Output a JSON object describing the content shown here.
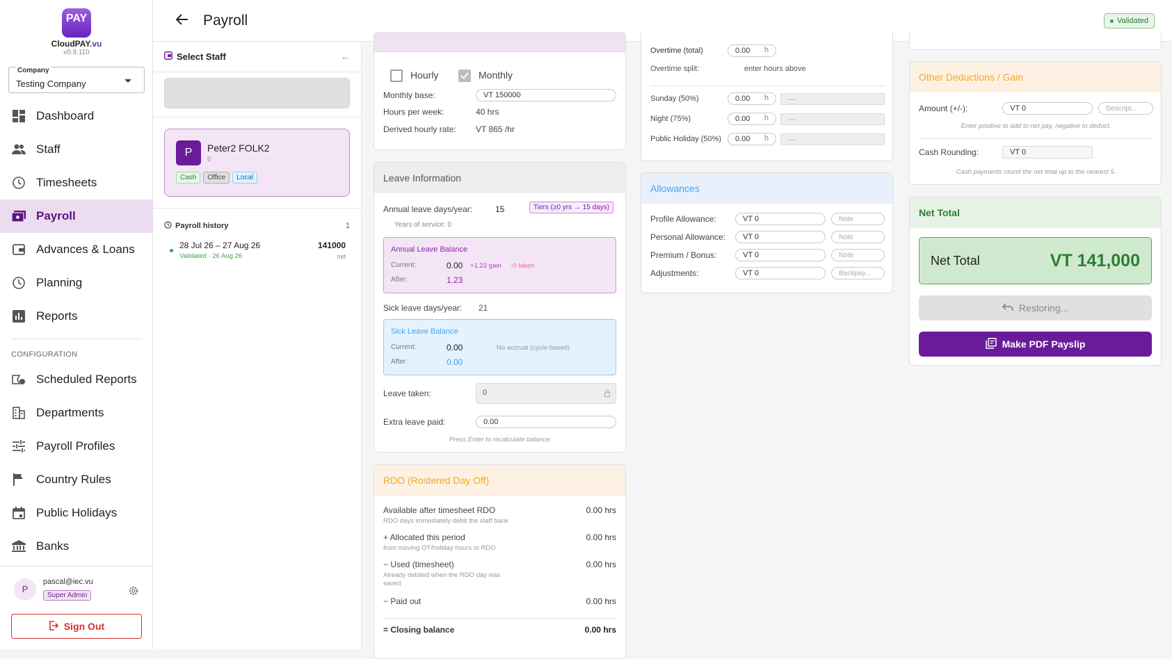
{
  "app": {
    "logo_text": "PAY",
    "name_a": "CloudPAY",
    "name_b": ".vu",
    "version": "v0.9.110"
  },
  "company": {
    "label": "Company",
    "value": "Testing Company"
  },
  "nav": {
    "items": [
      {
        "label": "Dashboard",
        "icon": "dashboard-icon"
      },
      {
        "label": "Staff",
        "icon": "people-icon"
      },
      {
        "label": "Timesheets",
        "icon": "clock-icon"
      },
      {
        "label": "Payroll",
        "icon": "payroll-icon"
      },
      {
        "label": "Advances & Loans",
        "icon": "wallet-icon"
      },
      {
        "label": "Planning",
        "icon": "clock-icon"
      },
      {
        "label": "Reports",
        "icon": "bar-chart-icon"
      }
    ],
    "config_heading": "CONFIGURATION",
    "config_items": [
      {
        "label": "Scheduled Reports",
        "icon": "scheduled-icon"
      },
      {
        "label": "Departments",
        "icon": "building-icon"
      },
      {
        "label": "Payroll Profiles",
        "icon": "tune-icon"
      },
      {
        "label": "Country Rules",
        "icon": "flag-icon"
      },
      {
        "label": "Public Holidays",
        "icon": "calendar-icon"
      },
      {
        "label": "Banks",
        "icon": "bank-icon"
      }
    ]
  },
  "user": {
    "initial": "P",
    "email": "pascal@iec.vu",
    "role": "Super Admin",
    "signout": "Sign Out"
  },
  "header": {
    "title": "Payroll",
    "status": "Validated"
  },
  "staff_panel": {
    "title": "Select Staff",
    "collapse": "←",
    "staff": {
      "initial": "P",
      "name": "Peter2 FOLK2",
      "number": "6",
      "tags": [
        "Cash",
        "Office",
        "Local"
      ]
    },
    "history_title": "Payroll history",
    "history_count": "1",
    "history": [
      {
        "dates": "28 Jul 26 – 27 Aug 26",
        "status": "Validated · 26 Aug 26",
        "amount": "141000",
        "unit": "net"
      }
    ]
  },
  "pay_basis": {
    "hourly": "Hourly",
    "monthly": "Monthly",
    "monthly_base_label": "Monthly base:",
    "monthly_base": "VT 150000",
    "hours_week_label": "Hours per week:",
    "hours_week": "40 hrs",
    "hourly_rate_label": "Derived hourly rate:",
    "hourly_rate": "VT 865 /hr"
  },
  "leave": {
    "title": "Leave Information",
    "annual_label": "Annual leave days/year:",
    "annual_value": "15",
    "tiers": "Tiers (≥0 yrs → 15 days)",
    "service": "Years of service: 0",
    "alb_title": "Annual Leave Balance",
    "alb_current_label": "Current:",
    "alb_current": "0.00",
    "alb_gain": "+1.23 gain",
    "alb_taken": "-0 taken",
    "alb_after_label": "After:",
    "alb_after": "1.23",
    "sick_label": "Sick leave days/year:",
    "sick_value": "21",
    "slb_title": "Sick Leave Balance",
    "slb_current_label": "Current:",
    "slb_current": "0.00",
    "slb_note": "No accrual (cycle-based)",
    "slb_after_label": "After:",
    "slb_after": "0.00",
    "taken_label": "Leave taken:",
    "taken_value": "0",
    "extra_label": "Extra leave paid:",
    "extra_value": "0.00",
    "hint": "Press Enter to recalculate balance."
  },
  "rdo": {
    "title": "RDO (Rostered Day Off)",
    "rows": [
      {
        "label": "Available after timesheet RDO",
        "sub": "RDO days immediately debit the staff bank",
        "value": "0.00 hrs"
      },
      {
        "label": "+ Allocated this period",
        "sub": "from moving OT/holiday hours to RDO",
        "value": "0.00 hrs"
      },
      {
        "label": "− Used (timesheet)",
        "sub": "Already debited when the RDO day was saved",
        "value": "0.00 hrs"
      },
      {
        "label": "− Paid out",
        "sub": "",
        "value": "0.00 hrs"
      }
    ],
    "closing_label": "= Closing balance",
    "closing_value": "0.00 hrs"
  },
  "overtime": {
    "total_label": "Overtime (total)",
    "total_value": "0.00",
    "unit": "h",
    "split_label": "Overtime split:",
    "split_value": "enter hours above",
    "rates": [
      {
        "label": "Sunday (50%)",
        "value": "0.00",
        "amount": "—"
      },
      {
        "label": "Night (75%)",
        "value": "0.00",
        "amount": "—"
      },
      {
        "label": "Public Holiday (50%)",
        "value": "0.00",
        "amount": "—"
      }
    ]
  },
  "allowances": {
    "title": "Allowances",
    "rows": [
      {
        "label": "Profile Allowance:",
        "prefix": "VT",
        "value": "0",
        "note": "Note"
      },
      {
        "label": "Personal Allowance:",
        "prefix": "VT",
        "value": "0",
        "note": "Note"
      },
      {
        "label": "Premium / Bonus:",
        "prefix": "VT",
        "value": "0",
        "note": "Note"
      },
      {
        "label": "Adjustments:",
        "prefix": "VT",
        "value": "0",
        "note": "Backpay..."
      }
    ]
  },
  "deductions": {
    "title": "Other Deductions / Gain",
    "amount_label": "Amount (+/-):",
    "amount_value": "VT 0",
    "desc_placeholder": "Descript...",
    "amount_hint": "Enter positive to add to net pay, negative to deduct.",
    "rounding_label": "Cash Rounding:",
    "rounding_value": "VT 0",
    "rounding_hint": "Cash payments round the net total up to the nearest 5."
  },
  "net": {
    "title": "Net Total",
    "label": "Net Total",
    "value": "VT 141,000",
    "restoring": "Restoring...",
    "pdf": "Make PDF Payslip"
  },
  "colors": {
    "accent": "#6a1b9a",
    "nav_active_bg": "#ecdcef",
    "success": "#2e7d32",
    "rdo": "#f5a623",
    "allowances": "#42a5f5"
  }
}
